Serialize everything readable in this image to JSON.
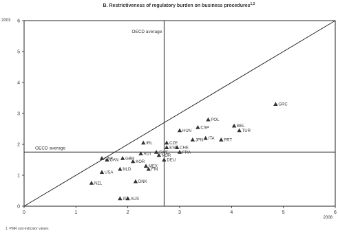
{
  "chart_data": {
    "type": "scatter",
    "title": "B. Restrictiveness of regulatory burden on business procedures",
    "title_marker": "1,2",
    "ylabel": "2003",
    "xlabel": "2008",
    "xlim": [
      0,
      6
    ],
    "ylim": [
      0,
      6
    ],
    "xticks": [
      "0",
      "1",
      "2",
      "3",
      "4",
      "5",
      "6"
    ],
    "yticks": [
      "0",
      "1",
      "2",
      "3",
      "4",
      "5",
      "6"
    ],
    "reference_lines": {
      "diagonal": true,
      "oecd_x": 2.7,
      "oecd_y": 1.75,
      "oecd_label_top": "OECD average",
      "oecd_label_left": "OECD average"
    },
    "points": [
      {
        "label": "GRC",
        "x": 4.85,
        "y": 3.3
      },
      {
        "label": "POL",
        "x": 3.55,
        "y": 2.8
      },
      {
        "label": "BEL",
        "x": 4.05,
        "y": 2.6
      },
      {
        "label": "HUN",
        "x": 3.0,
        "y": 2.45
      },
      {
        "label": "CSP",
        "x": 3.35,
        "y": 2.55
      },
      {
        "label": "TUR",
        "x": 4.15,
        "y": 2.45
      },
      {
        "label": "JPN",
        "x": 3.25,
        "y": 2.15
      },
      {
        "label": "ITA",
        "x": 3.5,
        "y": 2.2
      },
      {
        "label": "PRT",
        "x": 3.8,
        "y": 2.15
      },
      {
        "label": "CZE",
        "x": 2.75,
        "y": 2.05
      },
      {
        "label": "CHE",
        "x": 2.95,
        "y": 1.9
      },
      {
        "label": "FRA",
        "x": 3.0,
        "y": 1.75
      },
      {
        "label": "ESP",
        "x": 2.75,
        "y": 1.9
      },
      {
        "label": "IRL",
        "x": 2.3,
        "y": 2.05
      },
      {
        "label": "AUT",
        "x": 2.25,
        "y": 1.7
      },
      {
        "label": "SWE",
        "x": 2.55,
        "y": 1.75
      },
      {
        "label": "NOR",
        "x": 2.6,
        "y": 1.65
      },
      {
        "label": "DNK",
        "x": 1.5,
        "y": 1.55
      },
      {
        "label": "CAN",
        "x": 1.6,
        "y": 1.5
      },
      {
        "label": "GBR",
        "x": 1.9,
        "y": 1.55
      },
      {
        "label": "KOR",
        "x": 2.1,
        "y": 1.45
      },
      {
        "label": "NLD",
        "x": 1.85,
        "y": 1.2
      },
      {
        "label": "USA",
        "x": 1.5,
        "y": 1.1
      },
      {
        "label": "MEX",
        "x": 2.35,
        "y": 1.3
      },
      {
        "label": "FIN",
        "x": 2.4,
        "y": 1.2
      },
      {
        "label": "DEU",
        "x": 2.7,
        "y": 1.5
      },
      {
        "label": "NZL",
        "x": 1.3,
        "y": 0.75
      },
      {
        "label": "DNK",
        "x": 2.15,
        "y": 0.8
      },
      {
        "label": "ISL",
        "x": 1.85,
        "y": 0.25
      },
      {
        "label": "AUS",
        "x": 2.0,
        "y": 0.25
      }
    ],
    "footnote": "1. PMR sub-indicator values"
  }
}
